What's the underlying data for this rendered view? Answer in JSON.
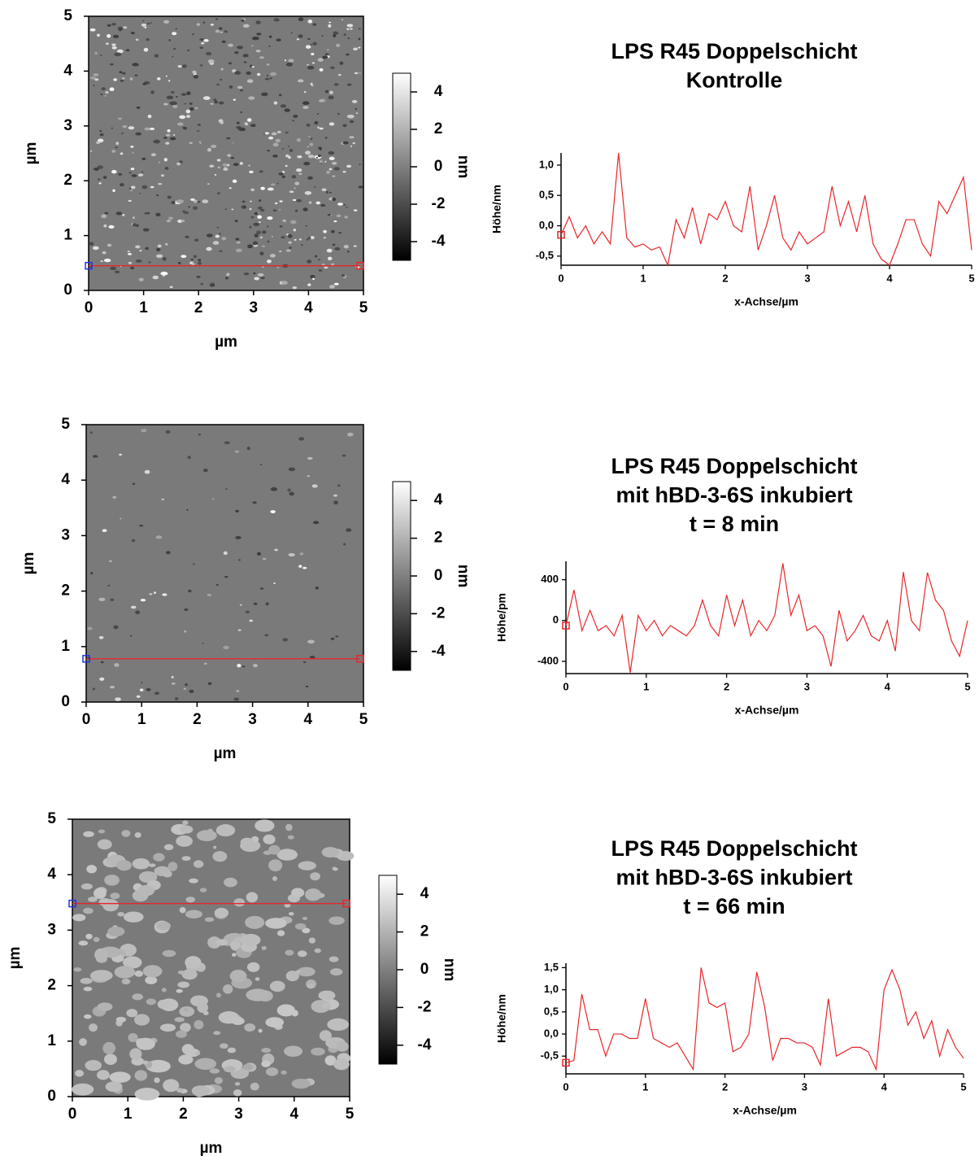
{
  "chart_data": [
    {
      "type": "image",
      "xlabel": "µm",
      "ylabel": "µm",
      "xlim": [
        0,
        5
      ],
      "ylim": [
        0,
        5
      ],
      "xticks": [
        0,
        1,
        2,
        3,
        4,
        5
      ],
      "yticks": [
        0,
        1,
        2,
        3,
        4,
        5
      ],
      "profile_y": 0.45,
      "colorbar": {
        "label": "nm",
        "lim": [
          -5,
          5
        ],
        "ticks": [
          4,
          2,
          0,
          -2,
          -4
        ]
      },
      "texture": "fine"
    },
    {
      "type": "line",
      "title": [
        "LPS R45 Doppelschicht",
        "Kontrolle"
      ],
      "xlabel": "x-Achse/µm",
      "ylabel": "Höhe/nm",
      "color": "#e8262a",
      "xlim": [
        0,
        5
      ],
      "ylim": [
        -0.65,
        1.2
      ],
      "xticks": [
        0,
        1,
        2,
        3,
        4,
        5
      ],
      "yticks": [
        {
          "value": 1,
          "label": "1,0"
        },
        {
          "value": 0.5,
          "label": "0,5"
        },
        {
          "value": 0,
          "label": "0,0"
        },
        {
          "value": -0.5,
          "label": "-0,5"
        }
      ],
      "x": [
        0,
        0.1,
        0.2,
        0.3,
        0.4,
        0.5,
        0.6,
        0.7,
        0.8,
        0.9,
        1,
        1.1,
        1.2,
        1.3,
        1.4,
        1.5,
        1.6,
        1.7,
        1.8,
        1.9,
        2,
        2.1,
        2.2,
        2.3,
        2.4,
        2.5,
        2.6,
        2.7,
        2.8,
        2.9,
        3,
        3.1,
        3.2,
        3.3,
        3.4,
        3.5,
        3.6,
        3.7,
        3.8,
        3.9,
        4,
        4.1,
        4.2,
        4.3,
        4.4,
        4.5,
        4.6,
        4.7,
        4.8,
        4.9,
        5
      ],
      "values": [
        -0.15,
        0.15,
        -0.2,
        0,
        -0.3,
        -0.1,
        -0.3,
        1.2,
        -0.2,
        -0.35,
        -0.3,
        -0.4,
        -0.35,
        -0.65,
        0.1,
        -0.2,
        0.3,
        -0.3,
        0.2,
        0.1,
        0.4,
        0,
        -0.1,
        0.65,
        -0.4,
        0,
        0.5,
        -0.2,
        -0.4,
        -0.1,
        -0.3,
        -0.2,
        -0.1,
        0.65,
        0,
        0.4,
        -0.1,
        0.5,
        -0.3,
        -0.55,
        -0.65,
        -0.3,
        0.1,
        0.1,
        -0.3,
        -0.5,
        0.4,
        0.2,
        0.5,
        0.8,
        -0.4
      ]
    },
    {
      "type": "image",
      "xlabel": "µm",
      "ylabel": "µm",
      "xlim": [
        0,
        5
      ],
      "ylim": [
        0,
        5
      ],
      "xticks": [
        0,
        1,
        2,
        3,
        4,
        5
      ],
      "yticks": [
        0,
        1,
        2,
        3,
        4,
        5
      ],
      "profile_y": 0.78,
      "colorbar": {
        "label": "nm",
        "lim": [
          -5,
          5
        ],
        "ticks": [
          4,
          2,
          0,
          -2,
          -4
        ]
      },
      "texture": "smooth"
    },
    {
      "type": "line",
      "title": [
        "LPS R45 Doppelschicht",
        "mit hBD-3-6S inkubiert",
        "t = 8 min"
      ],
      "xlabel": "x-Achse/µm",
      "ylabel": "Höhe/pm",
      "color": "#e8262a",
      "xlim": [
        0,
        5
      ],
      "ylim": [
        -520,
        580
      ],
      "xticks": [
        0,
        1,
        2,
        3,
        4,
        5
      ],
      "yticks": [
        400,
        0,
        -400
      ],
      "x": [
        0,
        0.1,
        0.2,
        0.3,
        0.4,
        0.5,
        0.6,
        0.7,
        0.8,
        0.9,
        1,
        1.1,
        1.2,
        1.3,
        1.4,
        1.5,
        1.6,
        1.7,
        1.8,
        1.9,
        2,
        2.1,
        2.2,
        2.3,
        2.4,
        2.5,
        2.6,
        2.7,
        2.8,
        2.9,
        3,
        3.1,
        3.2,
        3.3,
        3.4,
        3.5,
        3.6,
        3.7,
        3.8,
        3.9,
        4,
        4.1,
        4.2,
        4.3,
        4.4,
        4.5,
        4.6,
        4.7,
        4.8,
        4.9,
        5
      ],
      "values": [
        -50,
        300,
        -100,
        100,
        -100,
        -50,
        -150,
        50,
        -510,
        50,
        -100,
        0,
        -150,
        -50,
        -100,
        -150,
        -50,
        200,
        -50,
        -150,
        250,
        -50,
        200,
        -150,
        0,
        -100,
        50,
        560,
        50,
        250,
        -100,
        -50,
        -150,
        -450,
        100,
        -200,
        -100,
        50,
        -150,
        -200,
        0,
        -300,
        475,
        0,
        -100,
        470,
        200,
        100,
        -200,
        -350,
        0
      ]
    },
    {
      "type": "image",
      "xlabel": "µm",
      "ylabel": "µm",
      "xlim": [
        0,
        5
      ],
      "ylim": [
        0,
        5
      ],
      "xticks": [
        0,
        1,
        2,
        3,
        4,
        5
      ],
      "yticks": [
        0,
        1,
        2,
        3,
        4,
        5
      ],
      "profile_y": 3.48,
      "colorbar": {
        "label": "nm",
        "lim": [
          -5,
          5
        ],
        "ticks": [
          4,
          2,
          0,
          -2,
          -4
        ]
      },
      "texture": "islands"
    },
    {
      "type": "line",
      "title": [
        "LPS R45 Doppelschicht",
        "mit hBD-3-6S inkubiert",
        "t = 66 min"
      ],
      "xlabel": "x-Achse/µm",
      "ylabel": "Höhe/nm",
      "color": "#e8262a",
      "xlim": [
        0,
        5
      ],
      "ylim": [
        -0.9,
        1.6
      ],
      "xticks": [
        0,
        1,
        2,
        3,
        4,
        5
      ],
      "yticks": [
        {
          "value": 1.5,
          "label": "1,5"
        },
        {
          "value": 1,
          "label": "1,0"
        },
        {
          "value": 0.5,
          "label": "0,5"
        },
        {
          "value": 0,
          "label": "0,0"
        },
        {
          "value": -0.5,
          "label": "-0,5"
        }
      ],
      "x": [
        0,
        0.1,
        0.2,
        0.3,
        0.4,
        0.5,
        0.6,
        0.7,
        0.8,
        0.9,
        1,
        1.1,
        1.2,
        1.3,
        1.4,
        1.5,
        1.6,
        1.7,
        1.8,
        1.9,
        2,
        2.1,
        2.2,
        2.3,
        2.4,
        2.5,
        2.6,
        2.7,
        2.8,
        2.9,
        3,
        3.1,
        3.2,
        3.3,
        3.4,
        3.5,
        3.6,
        3.7,
        3.8,
        3.9,
        4,
        4.1,
        4.2,
        4.3,
        4.4,
        4.5,
        4.6,
        4.7,
        4.8,
        4.9,
        5
      ],
      "values": [
        -0.65,
        -0.6,
        0.9,
        0.1,
        0.1,
        -0.5,
        0,
        0,
        -0.1,
        -0.1,
        0.8,
        -0.1,
        -0.2,
        -0.3,
        -0.2,
        -0.5,
        -0.8,
        1.5,
        0.7,
        0.6,
        0.7,
        -0.4,
        -0.3,
        0,
        1.4,
        0.6,
        -0.6,
        -0.1,
        -0.1,
        -0.2,
        -0.2,
        -0.3,
        -0.7,
        0.8,
        -0.5,
        -0.4,
        -0.3,
        -0.3,
        -0.4,
        -0.8,
        1,
        1.45,
        1,
        0.2,
        0.5,
        -0.1,
        0.3,
        -0.5,
        0.1,
        -0.3,
        -0.55
      ]
    }
  ]
}
